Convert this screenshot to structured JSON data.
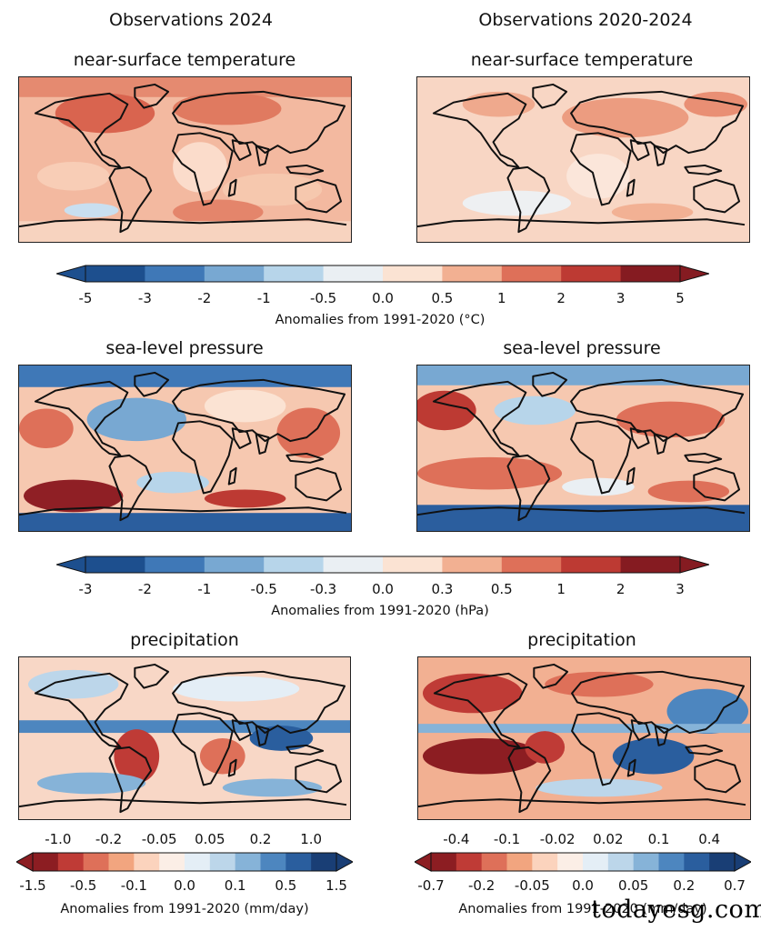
{
  "columns": {
    "left": "Observations 2024",
    "right": "Observations 2020-2024"
  },
  "panels": {
    "temperature": {
      "left_title": "near-surface temperature",
      "right_title": "near-surface temperature"
    },
    "pressure": {
      "left_title": "sea-level pressure",
      "right_title": "sea-level pressure"
    },
    "precip": {
      "left_title": "precipitation",
      "right_title": "precipitation"
    }
  },
  "colorbars": {
    "temperature": {
      "ticks": [
        "-5",
        "-3",
        "-2",
        "-1",
        "-0.5",
        "0.0",
        "0.5",
        "1",
        "2",
        "3",
        "5"
      ],
      "label": "Anomalies from 1991-2020 (°C)",
      "colors": [
        "#1d4f8e",
        "#3f78b7",
        "#78a8d2",
        "#b7d5ea",
        "#eaeff3",
        "#fbe3d3",
        "#f2b092",
        "#de7059",
        "#bd3a33",
        "#851b21"
      ]
    },
    "pressure": {
      "ticks": [
        "-3",
        "-2",
        "-1",
        "-0.5",
        "-0.3",
        "0.0",
        "0.3",
        "0.5",
        "1",
        "2",
        "3"
      ],
      "label": "Anomalies from 1991-2020 (hPa)",
      "colors": [
        "#1d4f8e",
        "#3f78b7",
        "#78a8d2",
        "#b7d5ea",
        "#eaeff3",
        "#fbe3d3",
        "#f2b092",
        "#de7059",
        "#bd3a33",
        "#851b21"
      ]
    },
    "precip_left": {
      "top_ticks": [
        "-1.0",
        "-0.2",
        "-0.05",
        "0.05",
        "0.2",
        "1.0"
      ],
      "bottom_ticks": [
        "-1.5",
        "-0.5",
        "-0.1",
        "0.0",
        "0.1",
        "0.5",
        "1.5"
      ],
      "label": "Anomalies from 1991-2020 (mm/day)",
      "colors": [
        "#8c1d22",
        "#bf3b36",
        "#de7059",
        "#f2a57f",
        "#fbd3bd",
        "#fbeee6",
        "#e4eef6",
        "#bcd6ea",
        "#86b3d8",
        "#4d86bf",
        "#2a5e9e",
        "#193e75"
      ]
    },
    "precip_right": {
      "top_ticks": [
        "-0.4",
        "-0.1",
        "-0.02",
        "0.02",
        "0.1",
        "0.4"
      ],
      "bottom_ticks": [
        "-0.7",
        "-0.2",
        "-0.05",
        "0.0",
        "0.05",
        "0.2",
        "0.7"
      ],
      "label": "Anomalies from 1991-2020 (mm/day)",
      "colors": [
        "#8c1d22",
        "#bf3b36",
        "#de7059",
        "#f2a57f",
        "#fbd3bd",
        "#fbeee6",
        "#e4eef6",
        "#bcd6ea",
        "#86b3d8",
        "#4d86bf",
        "#2a5e9e",
        "#193e75"
      ]
    }
  },
  "watermark": "todayesg.com"
}
